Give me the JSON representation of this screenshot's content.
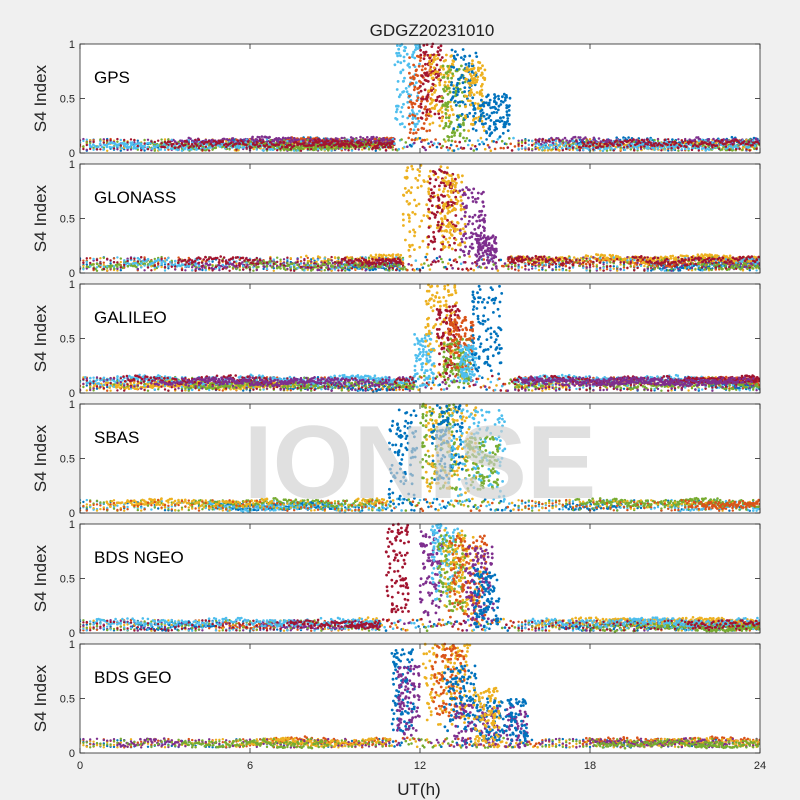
{
  "figure": {
    "title": "GDGZ20231010",
    "watermark": "IONISE",
    "xlabel": "UT(h)",
    "ylabel": "S4 Index",
    "background": "#f0f0f0",
    "axes_background": "#ffffff"
  },
  "palette": [
    "#0072BD",
    "#D95319",
    "#EDB120",
    "#7E2F8E",
    "#77AC30",
    "#4DBEEE",
    "#A2142F"
  ],
  "chart_data": {
    "type": "scatter",
    "x_ticks": [
      0,
      6,
      12,
      18,
      24
    ],
    "y_ticks": [
      0,
      0.5,
      1
    ],
    "xlim": [
      0,
      24
    ],
    "ylim": [
      0,
      1
    ],
    "grid": false,
    "panels": [
      {
        "label": "GPS",
        "baseline": [
          0.02,
          0.14
        ],
        "burst_start": 11.1,
        "burst_end": 15.4,
        "colors": [
          "#0072BD",
          "#D95319",
          "#EDB120",
          "#7E2F8E",
          "#77AC30",
          "#4DBEEE",
          "#A2142F"
        ],
        "series": [
          {
            "color": "#4DBEEE",
            "x_range": [
              11.1,
              12.0
            ],
            "y_range": [
              0.2,
              1.0
            ]
          },
          {
            "color": "#D95319",
            "x_range": [
              11.6,
              12.4
            ],
            "y_range": [
              0.1,
              0.9
            ]
          },
          {
            "color": "#A2142F",
            "x_range": [
              12.0,
              12.8
            ],
            "y_range": [
              0.25,
              1.0
            ]
          },
          {
            "color": "#EDB120",
            "x_range": [
              12.3,
              13.2
            ],
            "y_range": [
              0.2,
              0.9
            ]
          },
          {
            "color": "#77AC30",
            "x_range": [
              12.8,
              13.6
            ],
            "y_range": [
              0.1,
              0.8
            ]
          },
          {
            "color": "#0072BD",
            "x_range": [
              13.1,
              14.0
            ],
            "y_range": [
              0.2,
              0.95
            ]
          },
          {
            "color": "#EDB120",
            "x_range": [
              13.6,
              14.3
            ],
            "y_range": [
              0.2,
              0.85
            ]
          },
          {
            "color": "#0072BD",
            "x_range": [
              14.1,
              15.2
            ],
            "y_range": [
              0.15,
              0.55
            ]
          }
        ]
      },
      {
        "label": "GLONASS",
        "baseline": [
          0.02,
          0.16
        ],
        "burst_start": 11.4,
        "burst_end": 15.1,
        "colors": [
          "#0072BD",
          "#D95319",
          "#EDB120",
          "#7E2F8E",
          "#77AC30",
          "#4DBEEE",
          "#A2142F"
        ],
        "series": [
          {
            "color": "#EDB120",
            "x_range": [
              11.4,
              13.2
            ],
            "y_range": [
              0.15,
              1.0
            ]
          },
          {
            "color": "#A2142F",
            "x_range": [
              12.3,
              13.3
            ],
            "y_range": [
              0.2,
              0.95
            ]
          },
          {
            "color": "#EDB120",
            "x_range": [
              12.8,
              13.6
            ],
            "y_range": [
              0.2,
              0.9
            ]
          },
          {
            "color": "#7E2F8E",
            "x_range": [
              13.4,
              14.3
            ],
            "y_range": [
              0.1,
              0.8
            ]
          },
          {
            "color": "#7E2F8E",
            "x_range": [
              14.0,
              14.7
            ],
            "y_range": [
              0.05,
              0.35
            ]
          }
        ]
      },
      {
        "label": "GALILEO",
        "baseline": [
          0.02,
          0.16
        ],
        "burst_start": 11.8,
        "burst_end": 15.3,
        "colors": [
          "#0072BD",
          "#D95319",
          "#EDB120",
          "#77AC30",
          "#4DBEEE",
          "#A2142F",
          "#7E2F8E"
        ],
        "series": [
          {
            "color": "#4DBEEE",
            "x_range": [
              11.8,
              12.5
            ],
            "y_range": [
              0.05,
              0.55
            ]
          },
          {
            "color": "#EDB120",
            "x_range": [
              12.2,
              13.3
            ],
            "y_range": [
              0.15,
              1.0
            ]
          },
          {
            "color": "#A2142F",
            "x_range": [
              12.6,
              13.4
            ],
            "y_range": [
              0.1,
              0.8
            ]
          },
          {
            "color": "#77AC30",
            "x_range": [
              12.8,
              13.8
            ],
            "y_range": [
              0.05,
              0.5
            ]
          },
          {
            "color": "#D95319",
            "x_range": [
              13.0,
              13.9
            ],
            "y_range": [
              0.2,
              0.7
            ]
          },
          {
            "color": "#4DBEEE",
            "x_range": [
              13.4,
              14.0
            ],
            "y_range": [
              0.1,
              0.45
            ]
          },
          {
            "color": "#0072BD",
            "x_range": [
              13.8,
              14.9
            ],
            "y_range": [
              0.15,
              1.0
            ]
          }
        ]
      },
      {
        "label": "SBAS",
        "baseline": [
          0.02,
          0.13
        ],
        "burst_start": 10.9,
        "burst_end": 15.4,
        "colors": [
          "#0072BD",
          "#4DBEEE",
          "#77AC30",
          "#EDB120",
          "#D95319"
        ],
        "series": [
          {
            "color": "#0072BD",
            "x_range": [
              10.9,
              11.9
            ],
            "y_range": [
              0.05,
              0.95
            ]
          },
          {
            "color": "#77AC30",
            "x_range": [
              12.0,
              13.3
            ],
            "y_range": [
              0.2,
              1.0
            ]
          },
          {
            "color": "#EDB120",
            "x_range": [
              12.2,
              14.0
            ],
            "y_range": [
              0.15,
              1.0
            ]
          },
          {
            "color": "#0072BD",
            "x_range": [
              12.4,
              13.5
            ],
            "y_range": [
              0.3,
              1.0
            ]
          },
          {
            "color": "#4DBEEE",
            "x_range": [
              13.0,
              15.0
            ],
            "y_range": [
              0.1,
              0.95
            ]
          },
          {
            "color": "#77AC30",
            "x_range": [
              13.6,
              14.8
            ],
            "y_range": [
              0.2,
              0.7
            ]
          }
        ]
      },
      {
        "label": "BDS NGEO",
        "baseline": [
          0.02,
          0.13
        ],
        "burst_start": 10.6,
        "burst_end": 15.4,
        "colors": [
          "#0072BD",
          "#D95319",
          "#EDB120",
          "#7E2F8E",
          "#77AC30",
          "#4DBEEE",
          "#A2142F"
        ],
        "series": [
          {
            "color": "#A2142F",
            "x_range": [
              10.8,
              11.6
            ],
            "y_range": [
              0.1,
              1.0
            ]
          },
          {
            "color": "#7E2F8E",
            "x_range": [
              12.0,
              12.8
            ],
            "y_range": [
              0.1,
              0.95
            ]
          },
          {
            "color": "#4DBEEE",
            "x_range": [
              12.4,
              13.4
            ],
            "y_range": [
              0.3,
              1.0
            ]
          },
          {
            "color": "#77AC30",
            "x_range": [
              12.6,
              13.6
            ],
            "y_range": [
              0.2,
              0.9
            ]
          },
          {
            "color": "#EDB120",
            "x_range": [
              12.8,
              14.2
            ],
            "y_range": [
              0.15,
              0.95
            ]
          },
          {
            "color": "#D95319",
            "x_range": [
              13.0,
              14.4
            ],
            "y_range": [
              0.1,
              0.9
            ]
          },
          {
            "color": "#7E2F8E",
            "x_range": [
              13.6,
              14.6
            ],
            "y_range": [
              0.1,
              0.8
            ]
          },
          {
            "color": "#0072BD",
            "x_range": [
              13.9,
              14.8
            ],
            "y_range": [
              0.05,
              0.6
            ]
          }
        ]
      },
      {
        "label": "BDS GEO",
        "baseline": [
          0.05,
          0.14
        ],
        "burst_start": 11.0,
        "burst_end": 16.3,
        "colors": [
          "#0072BD",
          "#D95319",
          "#EDB120",
          "#7E2F8E",
          "#77AC30"
        ],
        "series": [
          {
            "color": "#0072BD",
            "x_range": [
              11.0,
              11.8
            ],
            "y_range": [
              0.2,
              0.95
            ]
          },
          {
            "color": "#7E2F8E",
            "x_range": [
              11.2,
              12.0
            ],
            "y_range": [
              0.1,
              0.8
            ]
          },
          {
            "color": "#EDB120",
            "x_range": [
              12.1,
              13.8
            ],
            "y_range": [
              0.25,
              1.0
            ]
          },
          {
            "color": "#D95319",
            "x_range": [
              12.4,
              13.6
            ],
            "y_range": [
              0.3,
              1.0
            ]
          },
          {
            "color": "#0072BD",
            "x_range": [
              12.8,
              14.0
            ],
            "y_range": [
              0.2,
              0.8
            ]
          },
          {
            "color": "#7E2F8E",
            "x_range": [
              13.2,
              15.8
            ],
            "y_range": [
              0.05,
              0.45
            ]
          },
          {
            "color": "#0072BD",
            "x_range": [
              14.0,
              15.8
            ],
            "y_range": [
              0.1,
              0.5
            ]
          },
          {
            "color": "#EDB120",
            "x_range": [
              13.9,
              14.8
            ],
            "y_range": [
              0.05,
              0.6
            ]
          }
        ]
      }
    ]
  }
}
